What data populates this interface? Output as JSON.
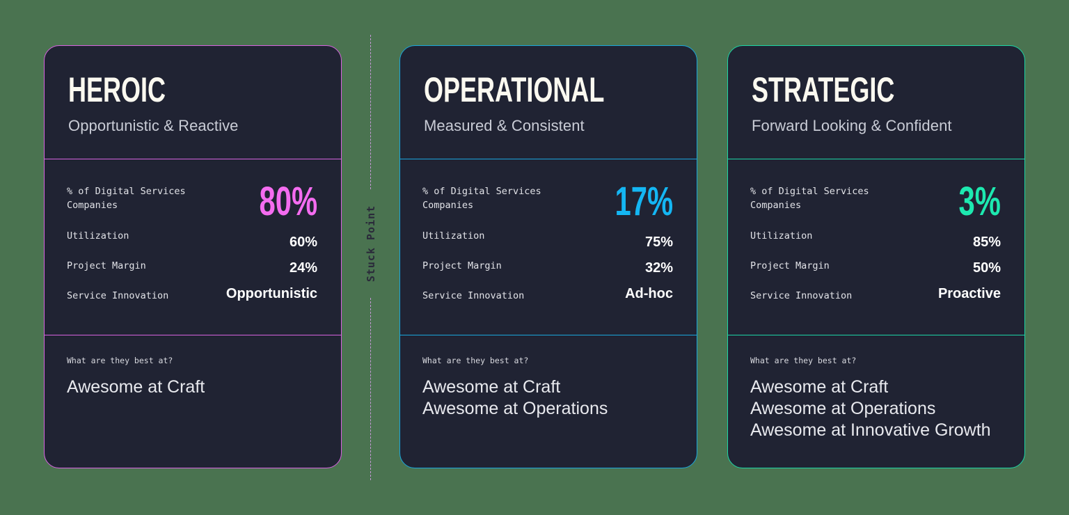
{
  "divider": {
    "label": "Stuck Point",
    "color": "#c79ad8"
  },
  "cards": [
    {
      "title": "HEROIC",
      "subtitle": "Opportunistic & Reactive",
      "accent": "#f46cf0",
      "border": "#d763e0",
      "metrics": {
        "share_label": "% of Digital Services Companies",
        "share_value": "80%",
        "utilization_label": "Utilization",
        "utilization_value": "60%",
        "margin_label": "Project Margin",
        "margin_value": "24%",
        "innovation_label": "Service Innovation",
        "innovation_value": "Opportunistic"
      },
      "best_label": "What are they best at?",
      "best_at": [
        "Awesome at Craft"
      ]
    },
    {
      "title": "OPERATIONAL",
      "subtitle": "Measured & Consistent",
      "accent": "#14b6f3",
      "border": "#1aa6dd",
      "metrics": {
        "share_label": "% of Digital Services Companies",
        "share_value": "17%",
        "utilization_label": "Utilization",
        "utilization_value": "75%",
        "margin_label": "Project Margin",
        "margin_value": "32%",
        "innovation_label": "Service Innovation",
        "innovation_value": "Ad-hoc"
      },
      "best_label": "What are they best at?",
      "best_at": [
        "Awesome at Craft",
        "Awesome at Operations"
      ]
    },
    {
      "title": "STRATEGIC",
      "subtitle": "Forward Looking & Confident",
      "accent": "#1de9b0",
      "border": "#1cd5a6",
      "metrics": {
        "share_label": "% of Digital Services Companies",
        "share_value": "3%",
        "utilization_label": "Utilization",
        "utilization_value": "85%",
        "margin_label": "Project Margin",
        "margin_value": "50%",
        "innovation_label": "Service Innovation",
        "innovation_value": "Proactive"
      },
      "best_label": "What are they best at?",
      "best_at": [
        "Awesome at Craft",
        "Awesome at Operations",
        "Awesome at Innovative Growth"
      ]
    }
  ]
}
